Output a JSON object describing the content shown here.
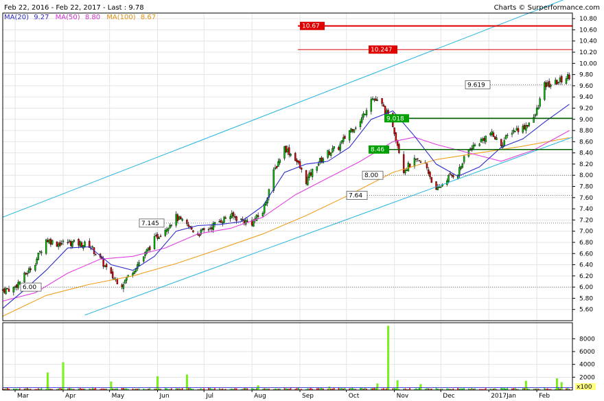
{
  "header": {
    "title": "Feb 22, 2016 - Feb 22, 2017 - Last : 9.78",
    "credit": "Charts © Surperformance.com"
  },
  "legend": {
    "ma20_label": "MA(20)",
    "ma20_value": "9.27",
    "ma50_label": "MA(50)",
    "ma50_value": "8.80",
    "ma100_label": "MA(100)",
    "ma100_value": "8.67"
  },
  "colors": {
    "ma20": "#2a2acc",
    "ma50": "#e040e0",
    "ma100": "#f0a020",
    "channel": "#20b4e0",
    "resistance": "#e00000",
    "support_fill": "#00a000",
    "bull": "#00c000",
    "bear": "#e00000",
    "volume": "#7cfc00"
  },
  "chart_data": {
    "type": "candlestick",
    "price_axis": {
      "ylim": [
        5.4,
        10.9
      ],
      "ticks": [
        "5.60",
        "5.80",
        "6.00",
        "6.20",
        "6.40",
        "6.60",
        "6.80",
        "7.00",
        "7.20",
        "7.40",
        "7.60",
        "7.80",
        "8.00",
        "8.20",
        "8.40",
        "8.60",
        "8.80",
        "9.00",
        "9.20",
        "9.40",
        "9.60",
        "9.80",
        "10.00",
        "10.20",
        "10.40",
        "10.60",
        "10.80"
      ]
    },
    "volume_axis": {
      "ylim": [
        0,
        10500
      ],
      "ticks": [
        "2000",
        "4000",
        "6000",
        "8000"
      ],
      "multiplier_label": "x100"
    },
    "x_axis": {
      "xlim": [
        "2016-02-22",
        "2017-02-24"
      ],
      "months": [
        {
          "label": "Mar",
          "date": "2016-03-01"
        },
        {
          "label": "Apr",
          "date": "2016-04-01"
        },
        {
          "label": "May",
          "date": "2016-05-01"
        },
        {
          "label": "Jun",
          "date": "2016-06-01"
        },
        {
          "label": "Jul",
          "date": "2016-07-01"
        },
        {
          "label": "Aug",
          "date": "2016-08-01"
        },
        {
          "label": "Sep",
          "date": "2016-09-01"
        },
        {
          "label": "Oct",
          "date": "2016-10-01"
        },
        {
          "label": "Nov",
          "date": "2016-11-01"
        },
        {
          "label": "Dec",
          "date": "2016-12-01"
        },
        {
          "label": "2017Jan",
          "date": "2017-01-01"
        },
        {
          "label": "Feb",
          "date": "2017-02-01"
        }
      ]
    },
    "close": [
      [
        "2016-02-22",
        5.95
      ],
      [
        "2016-02-29",
        5.98
      ],
      [
        "2016-03-07",
        6.2
      ],
      [
        "2016-03-14",
        6.45
      ],
      [
        "2016-03-21",
        6.85
      ],
      [
        "2016-03-28",
        6.78
      ],
      [
        "2016-04-04",
        6.8
      ],
      [
        "2016-04-11",
        6.78
      ],
      [
        "2016-04-18",
        6.75
      ],
      [
        "2016-04-25",
        6.5
      ],
      [
        "2016-05-02",
        6.2
      ],
      [
        "2016-05-09",
        6.05
      ],
      [
        "2016-05-16",
        6.3
      ],
      [
        "2016-05-23",
        6.55
      ],
      [
        "2016-05-30",
        6.85
      ],
      [
        "2016-06-06",
        7.05
      ],
      [
        "2016-06-13",
        7.25
      ],
      [
        "2016-06-20",
        7.1
      ],
      [
        "2016-06-27",
        6.95
      ],
      [
        "2016-07-04",
        7.05
      ],
      [
        "2016-07-11",
        7.18
      ],
      [
        "2016-07-18",
        7.28
      ],
      [
        "2016-07-25",
        7.2
      ],
      [
        "2016-08-01",
        7.15
      ],
      [
        "2016-08-08",
        7.35
      ],
      [
        "2016-08-15",
        8.05
      ],
      [
        "2016-08-22",
        8.5
      ],
      [
        "2016-08-29",
        8.3
      ],
      [
        "2016-09-05",
        7.9
      ],
      [
        "2016-09-12",
        8.2
      ],
      [
        "2016-09-19",
        8.4
      ],
      [
        "2016-09-26",
        8.5
      ],
      [
        "2016-10-03",
        8.8
      ],
      [
        "2016-10-10",
        8.95
      ],
      [
        "2016-10-17",
        9.4
      ],
      [
        "2016-10-24",
        9.25
      ],
      [
        "2016-10-31",
        8.9
      ],
      [
        "2016-11-07",
        8.1
      ],
      [
        "2016-11-14",
        8.25
      ],
      [
        "2016-11-21",
        8.2
      ],
      [
        "2016-11-28",
        7.7
      ],
      [
        "2016-12-05",
        7.95
      ],
      [
        "2016-12-12",
        8.05
      ],
      [
        "2016-12-19",
        8.45
      ],
      [
        "2016-12-26",
        8.6
      ],
      [
        "2017-01-02",
        8.75
      ],
      [
        "2017-01-09",
        8.55
      ],
      [
        "2017-01-16",
        8.8
      ],
      [
        "2017-01-23",
        8.85
      ],
      [
        "2017-01-30",
        9.0
      ],
      [
        "2017-02-06",
        9.6
      ],
      [
        "2017-02-13",
        9.65
      ],
      [
        "2017-02-22",
        9.78
      ]
    ],
    "ma20": [
      [
        "2016-02-22",
        5.62
      ],
      [
        "2016-03-07",
        5.95
      ],
      [
        "2016-03-21",
        6.3
      ],
      [
        "2016-04-04",
        6.7
      ],
      [
        "2016-04-18",
        6.72
      ],
      [
        "2016-05-02",
        6.4
      ],
      [
        "2016-05-16",
        6.3
      ],
      [
        "2016-05-30",
        6.55
      ],
      [
        "2016-06-13",
        7.0
      ],
      [
        "2016-06-27",
        7.1
      ],
      [
        "2016-07-11",
        7.12
      ],
      [
        "2016-07-25",
        7.17
      ],
      [
        "2016-08-08",
        7.45
      ],
      [
        "2016-08-22",
        8.05
      ],
      [
        "2016-09-05",
        8.2
      ],
      [
        "2016-09-19",
        8.25
      ],
      [
        "2016-10-03",
        8.5
      ],
      [
        "2016-10-17",
        9.0
      ],
      [
        "2016-10-31",
        9.15
      ],
      [
        "2016-11-14",
        8.7
      ],
      [
        "2016-11-28",
        8.2
      ],
      [
        "2016-12-12",
        7.98
      ],
      [
        "2016-12-26",
        8.15
      ],
      [
        "2017-01-09",
        8.5
      ],
      [
        "2017-01-23",
        8.65
      ],
      [
        "2017-02-06",
        8.95
      ],
      [
        "2017-02-22",
        9.27
      ]
    ],
    "ma50": [
      [
        "2016-02-22",
        5.75
      ],
      [
        "2016-03-14",
        5.9
      ],
      [
        "2016-04-04",
        6.25
      ],
      [
        "2016-04-25",
        6.5
      ],
      [
        "2016-05-16",
        6.55
      ],
      [
        "2016-06-06",
        6.7
      ],
      [
        "2016-06-27",
        6.95
      ],
      [
        "2016-07-18",
        7.05
      ],
      [
        "2016-08-08",
        7.25
      ],
      [
        "2016-08-29",
        7.65
      ],
      [
        "2016-09-19",
        7.95
      ],
      [
        "2016-10-10",
        8.25
      ],
      [
        "2016-10-31",
        8.6
      ],
      [
        "2016-11-14",
        8.68
      ],
      [
        "2016-11-28",
        8.55
      ],
      [
        "2016-12-19",
        8.4
      ],
      [
        "2017-01-09",
        8.25
      ],
      [
        "2017-01-30",
        8.45
      ],
      [
        "2017-02-22",
        8.8
      ]
    ],
    "ma100": [
      [
        "2016-02-22",
        5.48
      ],
      [
        "2016-03-21",
        5.85
      ],
      [
        "2016-04-18",
        6.05
      ],
      [
        "2016-05-16",
        6.2
      ],
      [
        "2016-06-13",
        6.42
      ],
      [
        "2016-07-11",
        6.68
      ],
      [
        "2016-08-08",
        6.95
      ],
      [
        "2016-09-05",
        7.28
      ],
      [
        "2016-10-03",
        7.65
      ],
      [
        "2016-10-31",
        8.05
      ],
      [
        "2016-11-28",
        8.28
      ],
      [
        "2016-12-26",
        8.4
      ],
      [
        "2017-01-23",
        8.52
      ],
      [
        "2017-02-22",
        8.67
      ]
    ],
    "channel_upper": [
      [
        "2016-02-22",
        7.25
      ],
      [
        "2017-02-24",
        11.2
      ]
    ],
    "channel_lower": [
      [
        "2016-04-15",
        5.5
      ],
      [
        "2017-02-24",
        8.68
      ]
    ],
    "levels": [
      {
        "value": 10.67,
        "label": "10.67",
        "style": "resistance"
      },
      {
        "value": 10.247,
        "label": "10.247",
        "style": "resistance"
      },
      {
        "value": 9.619,
        "label": "9.619",
        "style": "dotted"
      },
      {
        "value": 9.018,
        "label": "9.018",
        "style": "support"
      },
      {
        "value": 8.46,
        "label": "8.46",
        "style": "support"
      },
      {
        "value": 8.0,
        "label": "8.00",
        "style": "dotted"
      },
      {
        "value": 7.64,
        "label": "7.64",
        "style": "dotted"
      },
      {
        "value": 7.145,
        "label": "7.145",
        "style": "dotted"
      },
      {
        "value": 6.0,
        "label": "6.00",
        "style": "dotted"
      }
    ],
    "volume_spikes": [
      [
        "2016-03-22",
        2700
      ],
      [
        "2016-04-01",
        4300
      ],
      [
        "2016-05-02",
        1300
      ],
      [
        "2016-06-01",
        2100
      ],
      [
        "2016-06-20",
        2400
      ],
      [
        "2016-08-05",
        700
      ],
      [
        "2016-09-20",
        500
      ],
      [
        "2016-10-21",
        1000
      ],
      [
        "2016-10-28",
        10000
      ],
      [
        "2016-11-03",
        1500
      ],
      [
        "2016-11-18",
        900
      ],
      [
        "2017-01-25",
        1400
      ],
      [
        "2017-02-14",
        1800
      ],
      [
        "2017-02-17",
        1200
      ]
    ]
  }
}
